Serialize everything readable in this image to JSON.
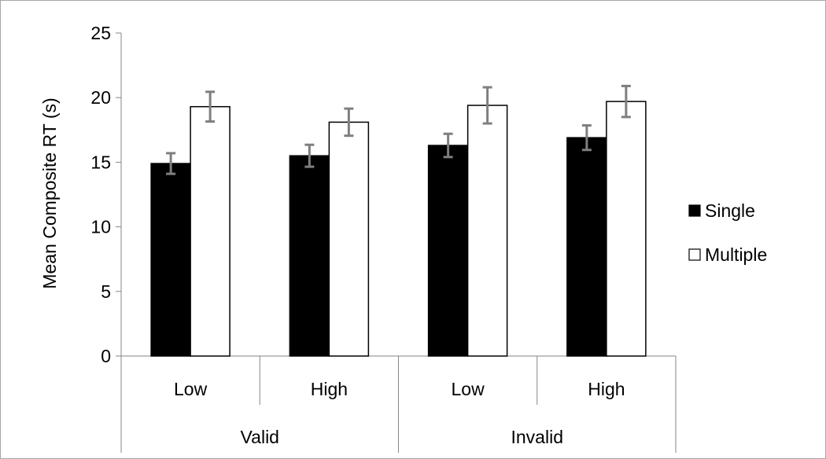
{
  "chart_data": {
    "type": "bar",
    "ylabel": "Mean Composite RT (s)",
    "ylim": [
      0,
      25
    ],
    "yticks": [
      0,
      5,
      10,
      15,
      20,
      25
    ],
    "grid": false,
    "legend_position": "right",
    "groups": [
      {
        "label": "Valid",
        "categories": [
          "Low",
          "High"
        ]
      },
      {
        "label": "Invalid",
        "categories": [
          "Low",
          "High"
        ]
      }
    ],
    "series": [
      {
        "name": "Single",
        "color": "#000000",
        "values": [
          14.9,
          15.5,
          16.3,
          16.9
        ],
        "error": [
          0.8,
          0.85,
          0.9,
          0.95
        ]
      },
      {
        "name": "Multiple",
        "color": "#ffffff",
        "values": [
          19.3,
          18.1,
          19.4,
          19.7
        ],
        "error": [
          1.15,
          1.05,
          1.4,
          1.2
        ]
      }
    ],
    "error_bar_color": "#7f7f7f"
  }
}
